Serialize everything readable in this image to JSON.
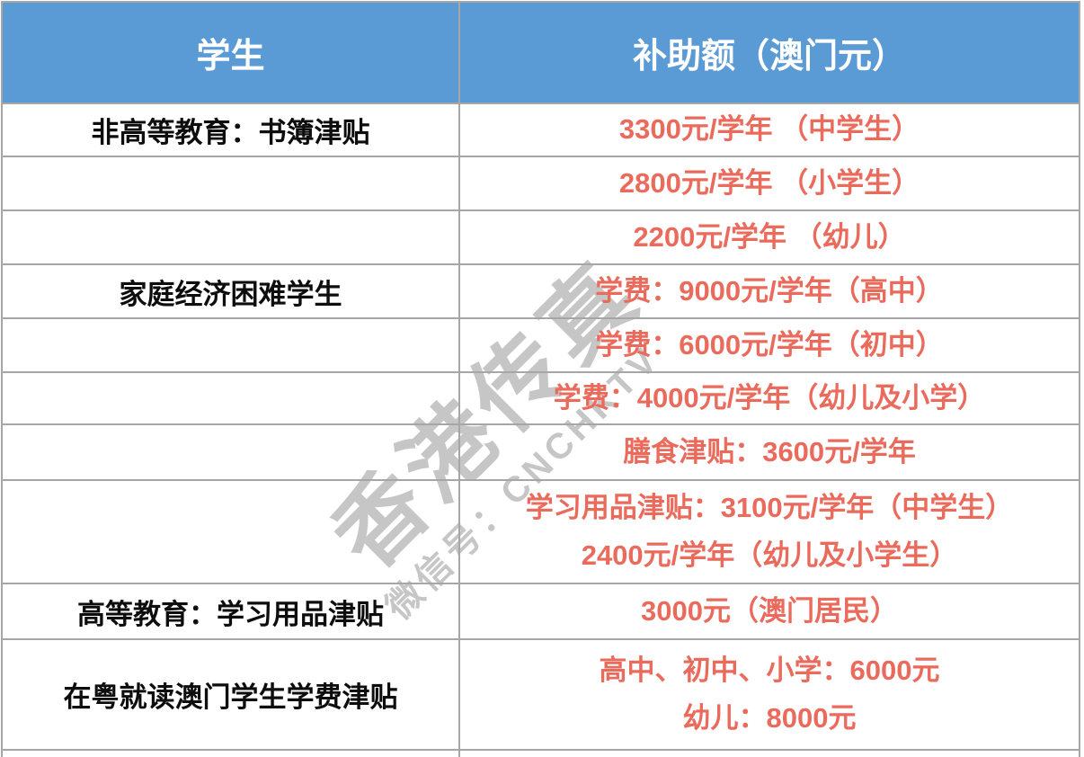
{
  "colors": {
    "header_bg": "#5b9bd5",
    "header_text": "#ffffff",
    "border": "#a6a6a6",
    "student_text": "#0d0d0d",
    "amount_text": "#ea6a5c",
    "watermark_text": "#c6c6c6"
  },
  "table": {
    "columns": [
      {
        "label": "学生"
      },
      {
        "label": "补助额（澳门元）"
      }
    ],
    "rows": [
      {
        "student": "非高等教育：书簿津贴",
        "amount_lines": [
          "3300元/学年 （中学生）"
        ]
      },
      {
        "student": "",
        "amount_lines": [
          "2800元/学年 （小学生）"
        ]
      },
      {
        "student": "",
        "amount_lines": [
          "2200元/学年 （幼儿）"
        ]
      },
      {
        "student": "家庭经济困难学生",
        "amount_lines": [
          "学费：9000元/学年（高中）"
        ]
      },
      {
        "student": "",
        "amount_lines": [
          "学费：6000元/学年（初中）"
        ]
      },
      {
        "student": "",
        "amount_lines": [
          "学费：4000元/学年（幼儿及小学）"
        ]
      },
      {
        "student": "",
        "amount_lines": [
          "膳食津贴：3600元/学年"
        ]
      },
      {
        "student": "",
        "amount_lines": [
          "学习用品津贴：3100元/学年（中学生）",
          "2400元/学年（幼儿及小学生）"
        ]
      },
      {
        "student": "高等教育：学习用品津贴",
        "amount_lines": [
          "3000元（澳门居民）"
        ]
      },
      {
        "student": "在粤就读澳门学生学费津贴",
        "amount_lines": [
          "高中、初中、小学：6000元",
          "幼儿：8000元"
        ]
      }
    ]
  },
  "watermark": {
    "title": "香港传真",
    "subtitle": "微信号：CNCHKTV"
  }
}
